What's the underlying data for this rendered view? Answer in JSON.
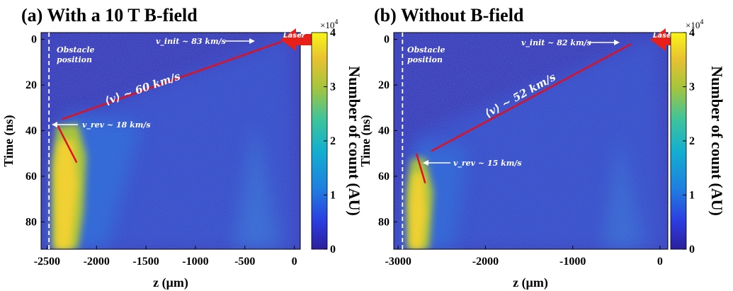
{
  "chart_data": [
    {
      "type": "heatmap",
      "panel_label": "(a)",
      "title": "With a 10 T B-field",
      "xlabel": "z (µm)",
      "ylabel": "Time (ns)",
      "xlim": [
        -2560,
        60
      ],
      "ylim": [
        92,
        -3
      ],
      "y_inverted": true,
      "xticks": [
        -2500,
        -2000,
        -1500,
        -1000,
        -500,
        0
      ],
      "xtick_labels": [
        "-2500",
        "-2000",
        "-1500",
        "-1000",
        "-500",
        "0"
      ],
      "yticks": [
        0,
        20,
        40,
        60,
        80
      ],
      "ytick_labels": [
        "0",
        "20",
        "40",
        "60",
        "80"
      ],
      "colorbar": {
        "label": "Number of count (AU)",
        "ticks": [
          0,
          1,
          2,
          3,
          4
        ],
        "tick_labels": [
          "0",
          "1",
          "2",
          "3",
          "4"
        ],
        "multiplier": "×10",
        "multiplier_exp": "4"
      },
      "obstacle": {
        "z": -2480,
        "label_line1": "Obstacle",
        "label_line2": "position"
      },
      "fit_lines": [
        {
          "name": "front",
          "x": [
            -2350,
            -130
          ],
          "y": [
            35,
            1
          ]
        },
        {
          "name": "reverse",
          "x": [
            -2390,
            -2200
          ],
          "y": [
            38,
            54
          ]
        }
      ],
      "annotations": {
        "v_init": "v_init ~ 83 km/s",
        "v_mean": "⟨v⟩ ~ 60 km/s",
        "v_rev": "v_rev ~ 18 km/s",
        "laser": "Laser"
      }
    },
    {
      "type": "heatmap",
      "panel_label": "(b)",
      "title": "Without B-field",
      "xlabel": "z (µm)",
      "ylabel": "Time (ns)",
      "xlim": [
        -3050,
        90
      ],
      "ylim": [
        92,
        -3
      ],
      "y_inverted": true,
      "xticks": [
        -3000,
        -2000,
        -1000,
        0
      ],
      "xtick_labels": [
        "-3000",
        "-2000",
        "-1000",
        "0"
      ],
      "yticks": [
        0,
        20,
        40,
        60,
        80
      ],
      "ytick_labels": [
        "0",
        "20",
        "40",
        "60",
        "80"
      ],
      "colorbar": {
        "label": "Number of count (AU)",
        "ticks": [
          0,
          1,
          2,
          3,
          4
        ],
        "tick_labels": [
          "0",
          "1",
          "2",
          "3",
          "4"
        ],
        "multiplier": "×10",
        "multiplier_exp": "4"
      },
      "obstacle": {
        "z": -2950,
        "label_line1": "Obstacle",
        "label_line2": "position"
      },
      "fit_lines": [
        {
          "name": "front",
          "x": [
            -2620,
            -330
          ],
          "y": [
            49,
            2
          ]
        },
        {
          "name": "reverse",
          "x": [
            -2790,
            -2690
          ],
          "y": [
            50,
            63
          ]
        }
      ],
      "annotations": {
        "v_init": "v_init ~ 82 km/s",
        "v_mean": "⟨v⟩ ~ 52 km/s",
        "v_rev": "v_rev ~ 15 km/s",
        "laser": "Laser"
      }
    }
  ],
  "colors": {
    "background": "#2a2fb0",
    "obstacle_line": "#ffffff",
    "fit_line": "#e01020",
    "laser_arrow": "#e8201a",
    "colormap": [
      "#2b1f9c",
      "#2c3de0",
      "#1f7fe0",
      "#13aed0",
      "#3ec49a",
      "#a8c43c",
      "#e8c230",
      "#f8f518"
    ]
  }
}
